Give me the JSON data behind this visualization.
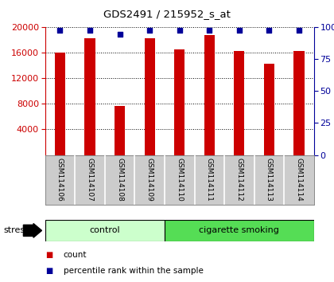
{
  "title": "GDS2491 / 215952_s_at",
  "samples": [
    "GSM114106",
    "GSM114107",
    "GSM114108",
    "GSM114109",
    "GSM114110",
    "GSM114111",
    "GSM114112",
    "GSM114113",
    "GSM114114"
  ],
  "counts": [
    16000,
    18200,
    7700,
    18200,
    16500,
    18700,
    16200,
    14200,
    16200
  ],
  "percentiles": [
    97,
    97,
    94,
    97,
    97,
    97,
    97,
    97,
    97
  ],
  "groups": [
    {
      "label": "control",
      "start": 0,
      "end": 4,
      "color": "#ccffcc"
    },
    {
      "label": "cigarette smoking",
      "start": 4,
      "end": 9,
      "color": "#55dd55"
    }
  ],
  "stress_label": "stress",
  "ylim_left": [
    0,
    20000
  ],
  "ylim_right": [
    0,
    100
  ],
  "yticks_left": [
    4000,
    8000,
    12000,
    16000,
    20000
  ],
  "yticks_right": [
    0,
    25,
    50,
    75,
    100
  ],
  "bar_color": "#cc0000",
  "dot_color": "#000099",
  "bar_width": 0.35,
  "legend_items": [
    {
      "label": "count",
      "color": "#cc0000"
    },
    {
      "label": "percentile rank within the sample",
      "color": "#000099"
    }
  ],
  "background_color": "#ffffff",
  "grid_color": "#000000",
  "label_area_color": "#cccccc",
  "label_area_border_color": "#888888"
}
